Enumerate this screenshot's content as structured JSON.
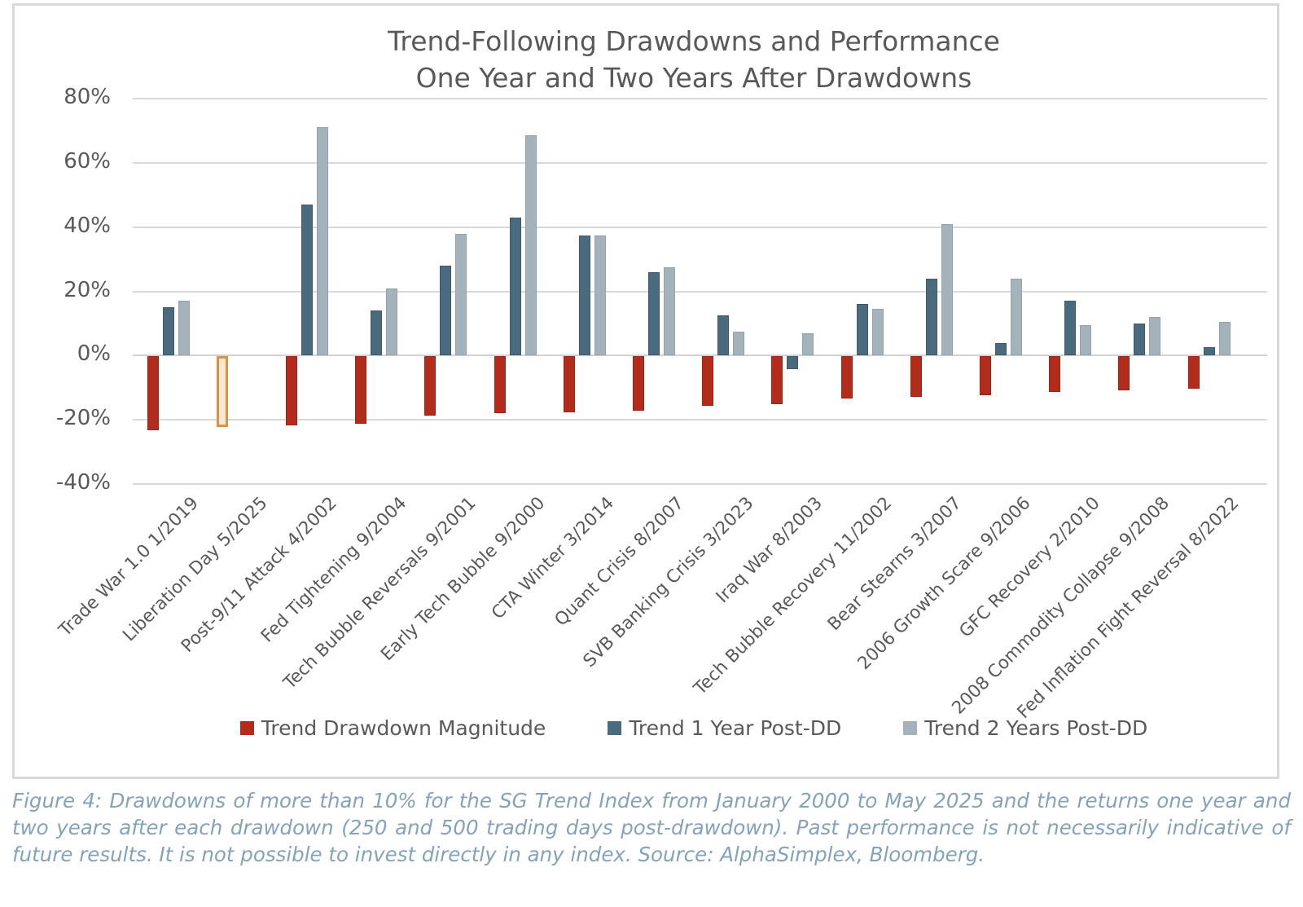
{
  "figure": {
    "title_line1": "Trend-Following Drawdowns and Performance",
    "title_line2": "One Year and Two Years After Drawdowns",
    "caption": "Figure 4: Drawdowns of more than 10% for the SG Trend Index from January 2000 to May 2025 and the returns one year and two years after each drawdown (250 and 500 trading days post-drawdown). Past performance is not necessarily indicative of future results. It is not possible to invest directly in any index. Source: AlphaSimplex, Bloomberg."
  },
  "colors": {
    "drawdown": "#B22B1B",
    "drawdown_border": "#A02414",
    "one_year": "#4A6A7D",
    "one_year_border": "#3E5B6C",
    "two_years": "#A4B2BC",
    "two_years_border": "#93A3AE",
    "outlined_fill": "#F6E9D5",
    "outlined_border": "#DD9143",
    "grid": "#D9D9D9",
    "axis_text": "#595959",
    "caption_text": "#84A3B9"
  },
  "legend": {
    "items": [
      {
        "key": "drawdown",
        "label": "Trend Drawdown Magnitude",
        "color": "#B22B1B"
      },
      {
        "key": "one_year",
        "label": "Trend 1 Year Post-DD",
        "color": "#4A6A7D"
      },
      {
        "key": "two_years",
        "label": "Trend 2 Years Post-DD",
        "color": "#A4B2BC"
      }
    ]
  },
  "chart_data": {
    "type": "bar",
    "title": "Trend-Following Drawdowns and Performance",
    "subtitle": "One Year and Two Years After Drawdowns",
    "categories": [
      "Trade War 1.0 1/2019",
      "Liberation Day 5/2025",
      "Post-9/11 Attack 4/2002",
      "Fed Tightening 9/2004",
      "Tech Bubble Reversals 9/2001",
      "Early Tech Bubble 9/2000",
      "CTA Winter 3/2014",
      "Quant Crisis 8/2007",
      "SVB Banking Crisis 3/2023",
      "Iraq War 8/2003",
      "Tech Bubble Recovery 11/2002",
      "Bear Stearns 3/2007",
      "2006 Growth Scare 9/2006",
      "GFC Recovery 2/2010",
      "2008 Commodity Collapse 9/2008",
      "Fed Inflation Fight Reversal 8/2022"
    ],
    "series": [
      {
        "name": "Trend Drawdown Magnitude",
        "values": [
          -23,
          -22,
          -21.5,
          -21,
          -18.5,
          -17.7,
          -17.5,
          -17,
          -15.5,
          -15,
          -13,
          -12.6,
          -12,
          -11,
          -10.5,
          -10
        ]
      },
      {
        "name": "Trend 1 Year Post-DD",
        "values": [
          15,
          null,
          47,
          14,
          28,
          43,
          37.5,
          26,
          12.5,
          -4,
          16,
          24,
          4,
          17,
          10,
          2.5
        ]
      },
      {
        "name": "Trend 2 Years Post-DD",
        "values": [
          17,
          null,
          71,
          21,
          38,
          68.5,
          37.5,
          27.5,
          7.5,
          7,
          14.5,
          41,
          24,
          9.5,
          12,
          10.5
        ]
      }
    ],
    "outlined_categories": [
      "Liberation Day 5/2025"
    ],
    "ylim": [
      -40,
      80
    ],
    "yticks": [
      80,
      60,
      40,
      20,
      0,
      -20,
      -40
    ],
    "ytick_suffix": "%",
    "grid": true,
    "legend_position": "bottom"
  }
}
